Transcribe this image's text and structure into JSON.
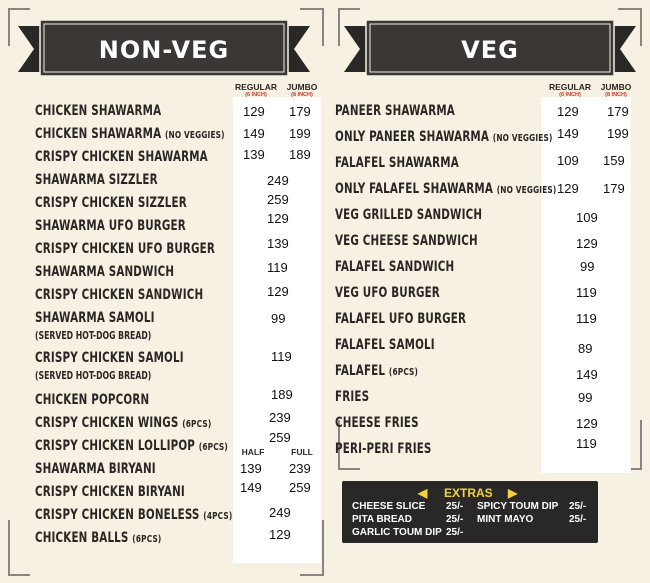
{
  "nonveg": {
    "title": "NON-VEG",
    "col_regular": "REGULAR",
    "col_regular_size": "(6 INCH)",
    "col_jumbo": "JUMBO",
    "col_jumbo_size": "(8 INCH)",
    "col_half": "HALF",
    "col_full": "FULL",
    "items": [
      {
        "name": "CHICKEN SHAWARMA",
        "note": "",
        "regular": "129",
        "jumbo": "179"
      },
      {
        "name": "CHICKEN SHAWARMA",
        "note": "(NO VEGGIES)",
        "regular": "149",
        "jumbo": "199"
      },
      {
        "name": "CRISPY CHICKEN SHAWARMA",
        "note": "",
        "regular": "139",
        "jumbo": "189"
      },
      {
        "name": "SHAWARMA SIZZLER",
        "note": "",
        "price": "249"
      },
      {
        "name": "CRISPY CHICKEN SIZZLER",
        "note": "",
        "price": "259"
      },
      {
        "name": "SHAWARMA UFO BURGER",
        "note": "",
        "price": "129"
      },
      {
        "name": "CRISPY CHICKEN UFO BURGER",
        "note": "",
        "price": "139"
      },
      {
        "name": "SHAWARMA SANDWICH",
        "note": "",
        "price": "119"
      },
      {
        "name": "CRISPY CHICKEN SANDWICH",
        "note": "",
        "price": "129"
      },
      {
        "name": "SHAWARMA SAMOLI",
        "sub": "(SERVED HOT-DOG BREAD)",
        "price": "99"
      },
      {
        "name": "CRISPY CHICKEN SAMOLI",
        "sub": "(SERVED HOT-DOG BREAD)",
        "price": "119"
      },
      {
        "name": "CHICKEN POPCORN",
        "note": "",
        "price": "189"
      },
      {
        "name": "CRISPY CHICKEN WINGS",
        "note": "(6PCS)",
        "price": "239"
      },
      {
        "name": "CRISPY CHICKEN LOLLIPOP",
        "note": "(6PCS)",
        "price": "259"
      },
      {
        "name": "SHAWARMA BIRYANI",
        "note": "",
        "half": "139",
        "full": "239"
      },
      {
        "name": "CRISPY CHICKEN BIRYANI",
        "note": "",
        "half": "149",
        "full": "259"
      },
      {
        "name": "CRISPY CHICKEN BONELESS",
        "note": "(4PCS)",
        "price": "249"
      },
      {
        "name": "CHICKEN BALLS",
        "note": "(6PCS)",
        "price": "129"
      }
    ]
  },
  "veg": {
    "title": "VEG",
    "col_regular": "REGULAR",
    "col_regular_size": "(6 INCH)",
    "col_jumbo": "JUMBO",
    "col_jumbo_size": "(8 INCH)",
    "items": [
      {
        "name": "PANEER SHAWARMA",
        "note": "",
        "regular": "129",
        "jumbo": "179"
      },
      {
        "name": "ONLY PANEER SHAWARMA",
        "note": "(NO VEGGIES)",
        "regular": "149",
        "jumbo": "199"
      },
      {
        "name": "FALAFEL SHAWARMA",
        "note": "",
        "regular": "109",
        "jumbo": "159"
      },
      {
        "name": "ONLY FALAFEL SHAWARMA",
        "note": "(NO VEGGIES)",
        "regular": "129",
        "jumbo": "179"
      },
      {
        "name": "VEG GRILLED SANDWICH",
        "note": "",
        "price": "109"
      },
      {
        "name": "VEG CHEESE SANDWICH",
        "note": "",
        "price": "129"
      },
      {
        "name": "FALAFEL SANDWICH",
        "note": "",
        "price": "99"
      },
      {
        "name": "VEG UFO BURGER",
        "note": "",
        "price": "119"
      },
      {
        "name": "FALAFEL UFO BURGER",
        "note": "",
        "price": "119"
      },
      {
        "name": "FALAFEL SAMOLI",
        "note": "",
        "price": "89"
      },
      {
        "name": "FALAFEL",
        "note": "(6PCS)",
        "price": "149"
      },
      {
        "name": "FRIES",
        "note": "",
        "price": "99"
      },
      {
        "name": "CHEESE FRIES",
        "note": "",
        "price": "129"
      },
      {
        "name": "PERI-PERI FRIES",
        "note": "",
        "price": "119"
      }
    ]
  },
  "extras": {
    "title": "EXTRAS",
    "items": [
      {
        "name": "CHEESE SLICE",
        "price": "25/-"
      },
      {
        "name": "PITA BREAD",
        "price": "25/-"
      },
      {
        "name": "GARLIC TOUM DIP",
        "price": "25/-"
      },
      {
        "name": "SPICY TOUM DIP",
        "price": "25/-"
      },
      {
        "name": "MINT MAYO",
        "price": "25/-"
      }
    ]
  },
  "colors": {
    "background": "#f6f1e3",
    "banner": "#2a2826",
    "text": "#2b2624",
    "size_note": "#c43a2a",
    "extras_title": "#f2d23a"
  }
}
